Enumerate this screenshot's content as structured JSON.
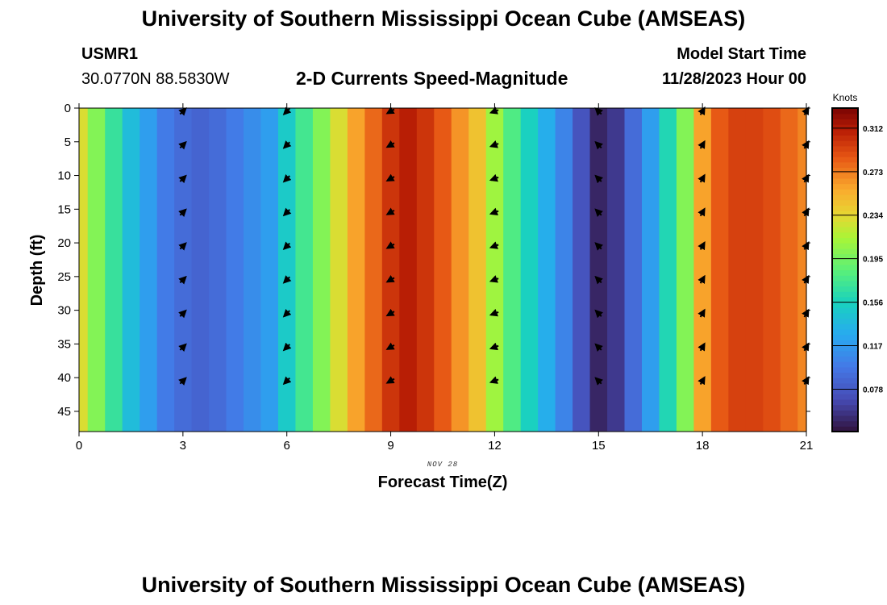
{
  "header": {
    "title": "University of Southern Mississippi Ocean Cube (AMSEAS)",
    "station": "USMR1",
    "location": "30.0770N  88.5830W",
    "chart_title": "2-D Currents Speed-Magnitude",
    "start_label": "Model Start Time",
    "start_value": "11/28/2023 Hour 00"
  },
  "footer": {
    "title": "University of Southern Mississippi Ocean Cube (AMSEAS)"
  },
  "chart_data": {
    "type": "heatmap",
    "title": "2-D Currents Speed-Magnitude",
    "xlabel": "Forecast Time(Z)",
    "ylabel": "Depth (ft)",
    "date_note": "NOV 28",
    "xlim": [
      0,
      21
    ],
    "ylim": [
      0,
      48
    ],
    "x_ticks": [
      0,
      3,
      6,
      9,
      12,
      15,
      18,
      21
    ],
    "y_ticks": [
      0,
      5,
      10,
      15,
      20,
      25,
      30,
      35,
      40,
      45
    ],
    "time_columns": [
      0,
      0.5,
      1,
      1.5,
      2,
      2.5,
      3,
      3.5,
      4,
      4.5,
      5,
      5.5,
      6,
      6.5,
      7,
      7.5,
      8,
      8.5,
      9,
      9.5,
      10,
      10.5,
      11,
      11.5,
      12,
      12.5,
      13,
      13.5,
      14,
      14.5,
      15,
      15.5,
      16,
      16.5,
      17,
      17.5,
      18,
      18.5,
      19,
      19.5,
      20,
      20.5,
      21
    ],
    "speed_knots": [
      0.23,
      0.2,
      0.17,
      0.14,
      0.12,
      0.1,
      0.09,
      0.085,
      0.09,
      0.1,
      0.11,
      0.12,
      0.15,
      0.175,
      0.2,
      0.23,
      0.26,
      0.28,
      0.3,
      0.31,
      0.3,
      0.285,
      0.265,
      0.245,
      0.21,
      0.18,
      0.155,
      0.13,
      0.105,
      0.075,
      0.05,
      0.06,
      0.09,
      0.12,
      0.16,
      0.2,
      0.26,
      0.285,
      0.295,
      0.295,
      0.29,
      0.28,
      0.27
    ],
    "colorbar": {
      "unit": "Knots",
      "min": 0.04,
      "max": 0.33,
      "ticks": [
        0.078,
        0.117,
        0.156,
        0.195,
        0.234,
        0.273,
        0.312
      ],
      "tick_labels": [
        "0.078",
        "0.117",
        "0.156",
        "0.195",
        "0.234",
        "0.273",
        "0.312"
      ]
    },
    "vectors": {
      "times": [
        3,
        6,
        9,
        12,
        15,
        18,
        21
      ],
      "depths": [
        0,
        5,
        10,
        15,
        20,
        25,
        30,
        35,
        40
      ],
      "directions_deg": [
        315,
        135,
        150,
        160,
        225,
        300,
        300
      ]
    }
  }
}
